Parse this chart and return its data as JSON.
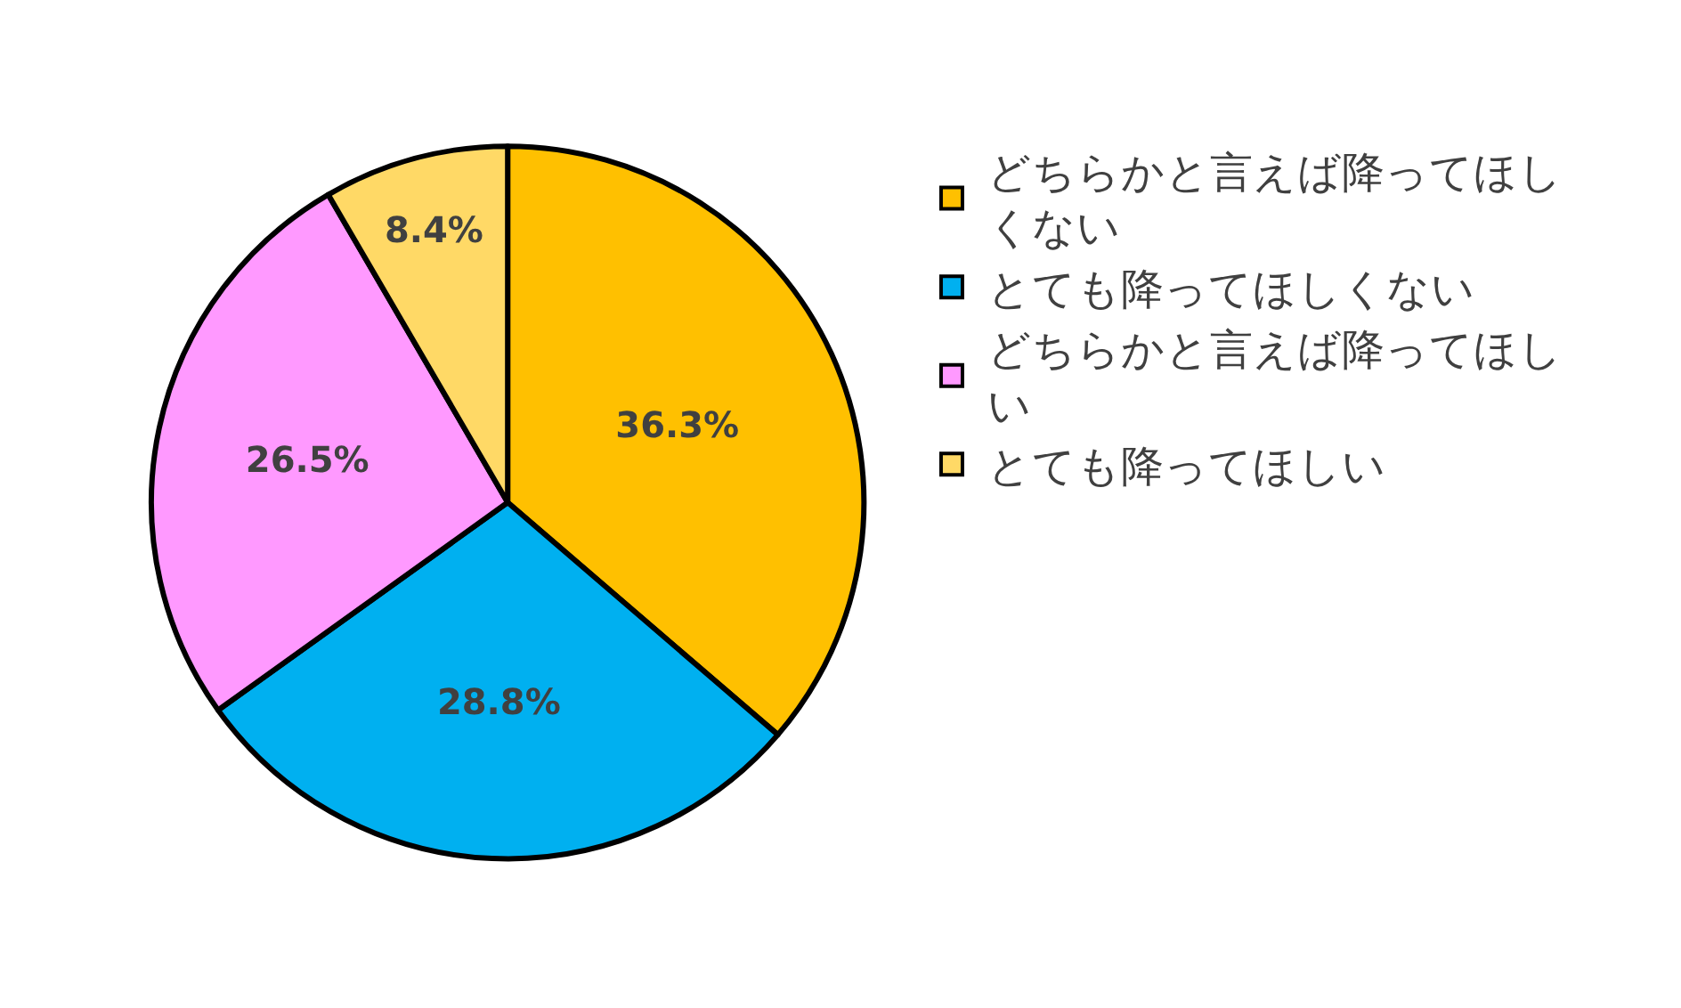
{
  "chart_data": {
    "type": "pie",
    "categories": [
      "どちらかと言えば降ってほしくない",
      "とても降ってほしくない",
      "どちらかと言えば降ってほしい",
      "とても降ってほしい"
    ],
    "values": [
      36.3,
      28.8,
      26.5,
      8.4
    ],
    "colors": [
      "#ffc000",
      "#00b0f0",
      "#ff99ff",
      "#ffd966"
    ],
    "value_labels": [
      "36.3%",
      "28.8%",
      "26.5%",
      "8.4%"
    ],
    "legend": "right"
  }
}
